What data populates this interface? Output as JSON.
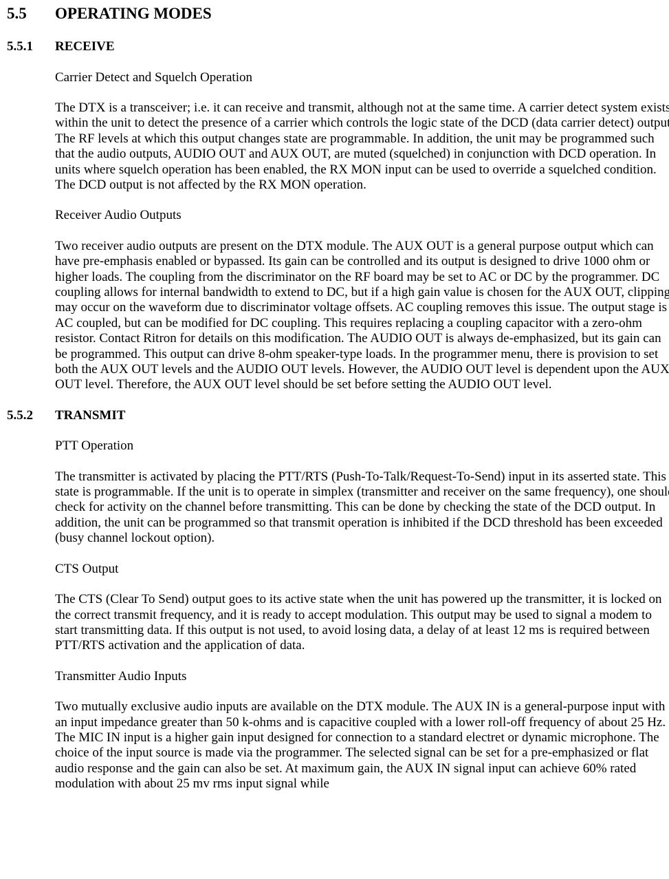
{
  "doc": {
    "section": {
      "num": "5.5",
      "title": "OPERATING MODES"
    },
    "sub1": {
      "num": "5.5.1",
      "title": "RECEIVE",
      "h1": "Carrier Detect and Squelch Operation",
      "p1": "The DTX is a transceiver; i.e. it can receive and transmit, although not at the same time.  A carrier detect system exists within the unit to detect the presence of a carrier which controls the logic state of the DCD (data carrier detect) output.  The RF levels at which this output changes state are programmable.  In addition, the unit may be programmed such that the audio outputs, AUDIO OUT and AUX OUT, are muted (squelched) in conjunction with DCD operation.  In units where squelch operation has been enabled, the RX MON input can be used to override a squelched condition.  The DCD output is not affected by the RX MON operation.",
      "h2": "Receiver Audio Outputs",
      "p2": "Two receiver audio outputs are present on the DTX module.  The AUX OUT is a general purpose output which can have pre-emphasis enabled or bypassed.  Its gain can be controlled and its output is designed to drive 1000 ohm or higher  loads.  The coupling from the discriminator on the RF board may be set to AC or DC by the programmer.  DC coupling allows for internal bandwidth to extend to DC, but if a high gain value is chosen for the AUX OUT, clipping may occur on the waveform due to discriminator voltage offsets.  AC coupling removes this issue.  The output stage is AC coupled, but can be modified for DC coupling.  This requires replacing a coupling capacitor with a zero-ohm resistor.  Contact Ritron for details on this modification.  The AUDIO OUT is always de-emphasized, but its gain can be programmed. This output can drive 8-ohm speaker-type loads. In the programmer menu, there is provision to set both the AUX OUT levels and the AUDIO OUT levels. However, the AUDIO OUT level is dependent upon the AUX OUT level. Therefore, the AUX OUT level should be set before setting the AUDIO OUT level."
    },
    "sub2": {
      "num": "5.5.2",
      "title": "TRANSMIT",
      "h1": "PTT Operation",
      "p1": "The transmitter is activated by placing the PTT/RTS (Push-To-Talk/Request-To-Send) input in its asserted state.  This state is programmable.  If the unit is to operate in simplex (transmitter and receiver on the same frequency), one should check for activity on the channel before transmitting.  This can be done by checking the state of the DCD output.  In addition, the unit can be programmed so that transmit operation is inhibited if the DCD threshold has been exceeded (busy channel lockout option).",
      "h2": "CTS Output",
      "p2": "The CTS (Clear To Send) output goes to its active state when the unit has powered up the transmitter, it is locked on the correct transmit frequency, and it is ready to accept modulation.  This output may be used to signal a modem to start transmitting data.  If this output is not used, to avoid losing data, a delay of at least 12 ms is required between PTT/RTS activation and the application of data.",
      "h3": "Transmitter Audio Inputs",
      "p3": "Two mutually exclusive audio inputs are available on the DTX module.  The AUX IN is a general-purpose input with an input impedance greater than 50 k-ohms and is capacitive coupled with a lower roll-off frequency of about 25 Hz.  The MIC IN input is a higher gain input designed for connection to a standard electret or dynamic microphone. The choice of the input source is made via the programmer. The selected signal can be set for a pre-emphasized or flat audio response and the gain can also be set. At maximum gain, the AUX IN signal input can achieve 60% rated modulation with about 25 mv rms input signal while"
    }
  }
}
